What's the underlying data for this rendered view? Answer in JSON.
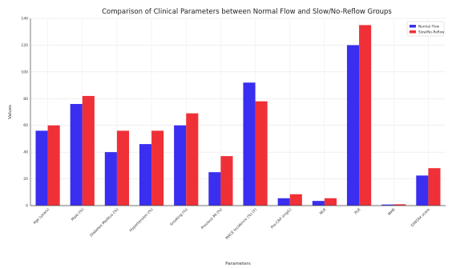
{
  "chart_data": {
    "type": "bar",
    "title": "Comparison of Clinical Parameters between Normal Flow and Slow/No-Reflow Groups",
    "xlabel": "Parameters",
    "ylabel": "Values",
    "ylim": [
      0,
      140
    ],
    "yticks": [
      "0",
      "20",
      "40",
      "60",
      "80",
      "100",
      "120",
      "140"
    ],
    "categories": [
      "Age (years)",
      "Male (%)",
      "Diabetes Mellitus (%)",
      "Hypertension (%)",
      "Smoking (%)",
      "Previous MI (%)",
      "MACE Incidence (%) (Y)",
      "Pre-CRP (mg/L)",
      "NLR",
      "PLR",
      "MHR",
      "SYNTAX score"
    ],
    "series": [
      {
        "name": "Normal Flow",
        "values": [
          56,
          76,
          40,
          46,
          60,
          25,
          92,
          5.5,
          3.5,
          120,
          0.8,
          22.5
        ]
      },
      {
        "name": "Slow/No-Reflow",
        "values": [
          60,
          82,
          56,
          56,
          69,
          37,
          78,
          8.5,
          5.5,
          135,
          1.0,
          28
        ]
      }
    ],
    "colors": [
      "#3a2ef0",
      "#f03037"
    ],
    "grid": true,
    "legend_position": "top-right"
  }
}
